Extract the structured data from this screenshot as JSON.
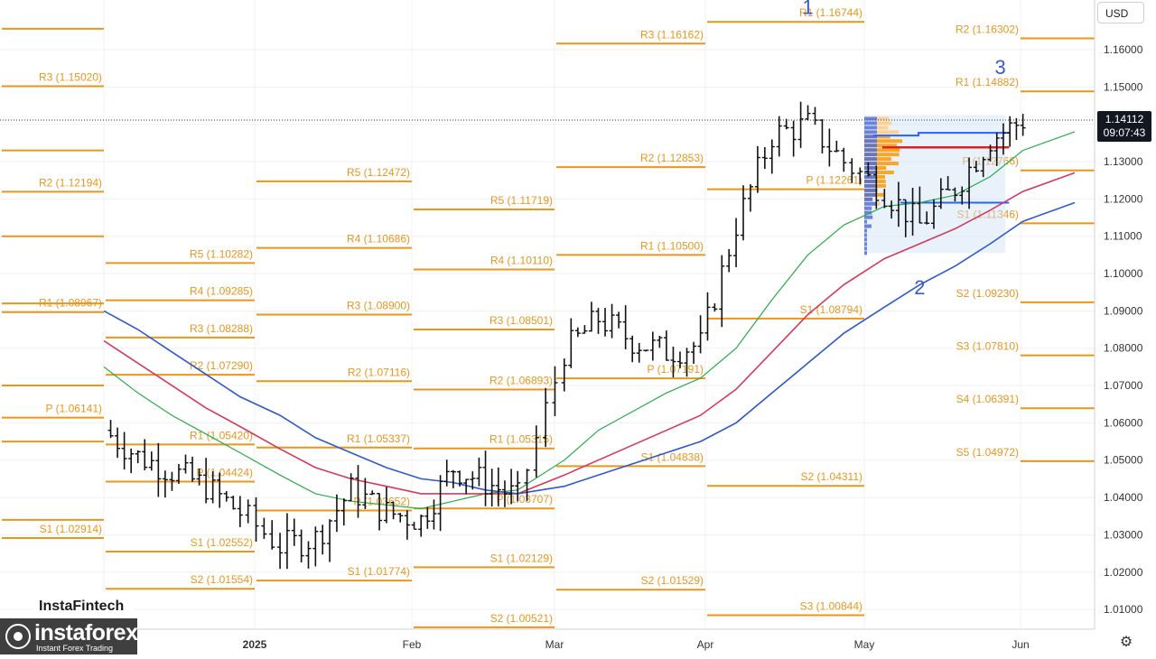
{
  "currency": "USD",
  "last_price": {
    "price": "1.14112",
    "time": "09:07:43"
  },
  "brand": {
    "watermark": "InstaFintech",
    "logo_name": "instaforex",
    "logo_sub": "Instant Forex Trading"
  },
  "settings_icon": "gear-icon",
  "colors": {
    "pivot": "#e8961e",
    "ma_fast": "#2bab4a",
    "ma_mid": "#d43a5e",
    "ma_slow": "#2f59c9",
    "wave": "#3a5bc7",
    "profile": "#ff9800",
    "profile_blue": "#2962ff",
    "poc": "#e02020"
  },
  "chart_data": {
    "type": "ohlc",
    "instrument_quote_currency": "USD",
    "y_ticks": [
      "1.16000",
      "1.15000",
      "1.14000",
      "1.13000",
      "1.12000",
      "1.11000",
      "1.10000",
      "1.09000",
      "1.08000",
      "1.07000",
      "1.06000",
      "1.05000",
      "1.04000",
      "1.03000",
      "1.02000",
      "1.01000"
    ],
    "x_ticks": [
      "2025",
      "Feb",
      "Mar",
      "Apr",
      "May",
      "Jun"
    ],
    "ylim": [
      1.0005,
      1.1724
    ],
    "last_price": 1.14112,
    "pivot_levels": [
      {
        "period": "Dec",
        "labels": [
          {
            "text": "R3 (1.15020)",
            "value": 1.1502
          },
          {
            "text": "R2 (1.12194)",
            "value": 1.12194
          },
          {
            "text": "R1 (1.08967)",
            "value": 1.08967
          },
          {
            "text": "P (1.06141)",
            "value": 1.06141
          },
          {
            "text": "S1 (1.02914)",
            "value": 1.02914
          }
        ],
        "unlabeled": [
          1.1656,
          1.133,
          1.11,
          1.092,
          1.07,
          1.055,
          1.034
        ]
      },
      {
        "period": "Jan",
        "labels": [
          {
            "text": "R5 (1.10282)",
            "value": 1.10282
          },
          {
            "text": "R4 (1.09285)",
            "value": 1.09285
          },
          {
            "text": "R3 (1.08288)",
            "value": 1.08288
          },
          {
            "text": "R2 (1.07290)",
            "value": 1.0729
          },
          {
            "text": "R1 (1.05420)",
            "value": 1.0542
          },
          {
            "text": "P (1.04424)",
            "value": 1.04424
          },
          {
            "text": "S1 (1.02552)",
            "value": 1.02552
          },
          {
            "text": "S2 (1.01554)",
            "value": 1.01554
          }
        ]
      },
      {
        "period": "Feb",
        "labels": [
          {
            "text": "R5 (1.12472)",
            "value": 1.12472
          },
          {
            "text": "R4 (1.10686)",
            "value": 1.10686
          },
          {
            "text": "R3 (1.08900)",
            "value": 1.089
          },
          {
            "text": "R2 (1.07116)",
            "value": 1.07116
          },
          {
            "text": "R1 (1.05337)",
            "value": 1.05337
          },
          {
            "text": "P (1.03652)",
            "value": 1.03652
          },
          {
            "text": "S1 (1.01774)",
            "value": 1.01774
          }
        ]
      },
      {
        "period": "Mar",
        "labels": [
          {
            "text": "R5 (1.11719)",
            "value": 1.11719
          },
          {
            "text": "R4 (1.10110)",
            "value": 1.1011
          },
          {
            "text": "R3 (1.08501)",
            "value": 1.08501
          },
          {
            "text": "R2 (1.06893)",
            "value": 1.06893
          },
          {
            "text": "R1 (1.05315)",
            "value": 1.05315
          },
          {
            "text": "P (1.03707)",
            "value": 1.03707
          },
          {
            "text": "S1 (1.02129)",
            "value": 1.02129
          },
          {
            "text": "S2 (1.00521)",
            "value": 1.00521
          }
        ]
      },
      {
        "period": "Apr",
        "labels": [
          {
            "text": "R3 (1.16162)",
            "value": 1.16162
          },
          {
            "text": "R2 (1.12853)",
            "value": 1.12853
          },
          {
            "text": "R1 (1.10500)",
            "value": 1.105
          },
          {
            "text": "P (1.07191)",
            "value": 1.07191
          },
          {
            "text": "S1 (1.04838)",
            "value": 1.04838
          },
          {
            "text": "S2 (1.01529)",
            "value": 1.01529
          }
        ]
      },
      {
        "period": "May",
        "labels": [
          {
            "text": "R1 (1.16744)",
            "value": 1.16744
          },
          {
            "text": "P (1.12261)",
            "value": 1.12261
          },
          {
            "text": "S1 (1.08794)",
            "value": 1.08794
          },
          {
            "text": "S2 (1.04311)",
            "value": 1.04311
          },
          {
            "text": "S3 (1.00844)",
            "value": 1.00844
          }
        ]
      },
      {
        "period": "Jun",
        "labels": [
          {
            "text": "R2 (1.16302)",
            "value": 1.16302
          },
          {
            "text": "R1 (1.14882)",
            "value": 1.14882
          },
          {
            "text": "P (1.12766)",
            "value": 1.12766
          },
          {
            "text": "S1 (1.11346)",
            "value": 1.11346
          },
          {
            "text": "S2 (1.09230)",
            "value": 1.0923
          },
          {
            "text": "S3 (1.07810)",
            "value": 1.0781
          },
          {
            "text": "S4 (1.06391)",
            "value": 1.06391
          },
          {
            "text": "S5 (1.04972)",
            "value": 1.04972
          }
        ]
      }
    ],
    "wave_labels": [
      {
        "text": "1",
        "date": "Apr 21",
        "price": 1.1695
      },
      {
        "text": "2",
        "date": "May 12",
        "price": 1.0945
      },
      {
        "text": "3",
        "date": "May 28",
        "price": 1.1535
      }
    ],
    "volume_profile": {
      "from": "May 1",
      "to": "May 29",
      "high": 1.1425,
      "low": 1.1055,
      "poc": 1.1338,
      "value_area_high": 1.137,
      "value_area_low": 1.119
    },
    "close_series": {
      "dates": [
        "Dec 1",
        "Dec 8",
        "Dec 15",
        "Dec 22",
        "Dec 29",
        "Jan 6",
        "Jan 13",
        "Jan 20",
        "Jan 27",
        "Feb 3",
        "Feb 10",
        "Feb 17",
        "Feb 24",
        "Mar 3",
        "Mar 10",
        "Mar 17",
        "Mar 24",
        "Mar 31",
        "Apr 7",
        "Apr 14",
        "Apr 21",
        "Apr 28",
        "May 5",
        "May 12",
        "May 19",
        "May 26",
        "Jun 2"
      ],
      "values": [
        1.058,
        1.051,
        1.047,
        1.043,
        1.036,
        1.027,
        1.029,
        1.042,
        1.036,
        1.034,
        1.048,
        1.044,
        1.04,
        1.079,
        1.088,
        1.082,
        1.079,
        1.081,
        1.113,
        1.137,
        1.14,
        1.13,
        1.122,
        1.113,
        1.123,
        1.136,
        1.141
      ]
    },
    "moving_averages": [
      {
        "color": "green",
        "values": [
          1.075,
          1.068,
          1.062,
          1.057,
          1.052,
          1.046,
          1.041,
          1.039,
          1.038,
          1.037,
          1.039,
          1.041,
          1.042,
          1.05,
          1.058,
          1.063,
          1.068,
          1.072,
          1.08,
          1.093,
          1.105,
          1.113,
          1.118,
          1.119,
          1.121,
          1.126,
          1.133
        ]
      },
      {
        "color": "red",
        "values": [
          1.082,
          1.076,
          1.07,
          1.064,
          1.059,
          1.053,
          1.048,
          1.045,
          1.043,
          1.041,
          1.041,
          1.041,
          1.041,
          1.046,
          1.05,
          1.054,
          1.058,
          1.062,
          1.069,
          1.079,
          1.089,
          1.097,
          1.104,
          1.108,
          1.112,
          1.117,
          1.122
        ]
      },
      {
        "color": "blue",
        "values": [
          1.09,
          1.085,
          1.079,
          1.073,
          1.067,
          1.062,
          1.056,
          1.052,
          1.048,
          1.045,
          1.044,
          1.042,
          1.041,
          1.043,
          1.046,
          1.049,
          1.052,
          1.055,
          1.06,
          1.068,
          1.076,
          1.084,
          1.091,
          1.097,
          1.102,
          1.108,
          1.114
        ]
      }
    ]
  }
}
